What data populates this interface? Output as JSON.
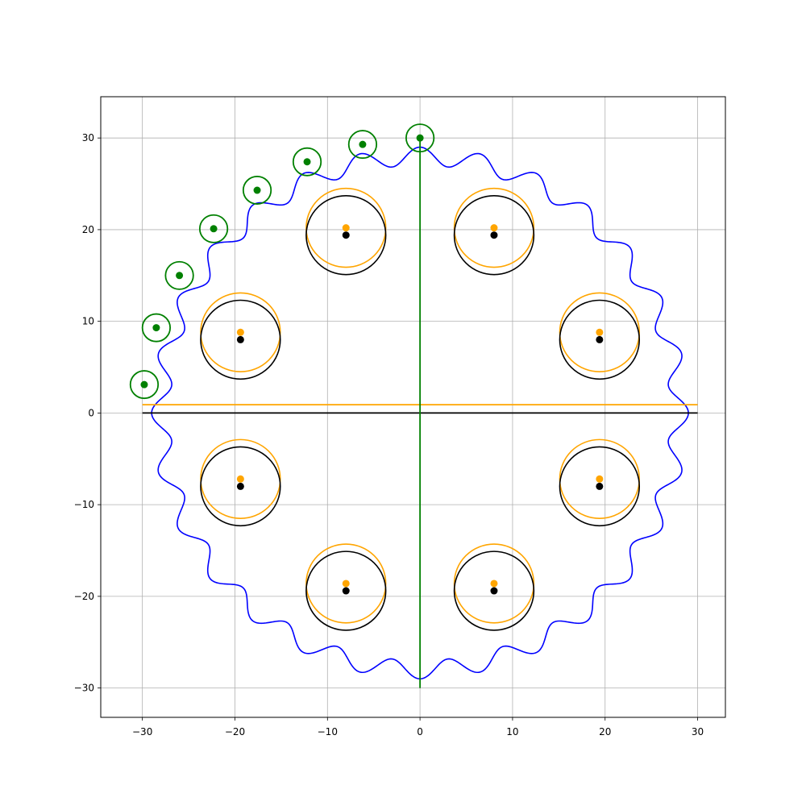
{
  "chart_data": {
    "type": "scatter",
    "title": "",
    "xlabel": "",
    "ylabel": "",
    "xlim": [
      -34.5,
      33.0
    ],
    "ylim": [
      -33.2,
      34.5
    ],
    "xticks": [
      -30,
      -20,
      -10,
      0,
      10,
      20,
      30
    ],
    "yticks": [
      -30,
      -20,
      -10,
      0,
      10,
      20,
      30
    ],
    "xtick_labels": [
      "−30",
      "−20",
      "−10",
      "0",
      "10",
      "20",
      "30"
    ],
    "ytick_labels": [
      "−30",
      "−20",
      "−10",
      "0",
      "10",
      "20",
      "30"
    ],
    "grid": true,
    "legend": "none",
    "colors": {
      "profile": "#0000ff",
      "pins": "#008000",
      "holes_reference": "#000000",
      "holes_offset": "#ffa500",
      "grid": "#b0b0b0"
    },
    "cycloid_profile": {
      "color": "#0000ff",
      "mean_radius": 28.0,
      "lobes": 28,
      "amplitude": 1.0
    },
    "reference_lines": [
      {
        "name": "",
        "color": "#000000",
        "x": [
          -30,
          30
        ],
        "y": [
          0,
          0
        ]
      },
      {
        "name": "",
        "color": "#ffa500",
        "x": [
          -30,
          30
        ],
        "y": [
          0.9,
          0.9
        ]
      },
      {
        "name": "",
        "color": "#008000",
        "x": [
          0,
          0
        ],
        "y": [
          -30,
          30
        ]
      }
    ],
    "pins": {
      "color": "#008000",
      "radius": 1.5,
      "centers": [
        [
          0.0,
          30.0
        ],
        [
          -6.2,
          29.3
        ],
        [
          -12.2,
          27.4
        ],
        [
          -17.6,
          24.3
        ],
        [
          -22.3,
          20.1
        ],
        [
          -26.0,
          15.0
        ],
        [
          -28.5,
          9.3
        ],
        [
          -29.8,
          3.1
        ]
      ]
    },
    "holes_reference": {
      "color": "#000000",
      "radius": 4.3,
      "centers": [
        [
          8.0,
          19.4
        ],
        [
          19.4,
          8.0
        ],
        [
          19.4,
          -8.0
        ],
        [
          8.0,
          -19.4
        ],
        [
          -8.0,
          -19.4
        ],
        [
          -19.4,
          -8.0
        ],
        [
          -19.4,
          8.0
        ],
        [
          -8.0,
          19.4
        ]
      ]
    },
    "holes_offset": {
      "color": "#ffa500",
      "radius": 4.3,
      "centers": [
        [
          8.0,
          20.2
        ],
        [
          19.4,
          8.8
        ],
        [
          19.4,
          -7.2
        ],
        [
          8.0,
          -18.6
        ],
        [
          -8.0,
          -18.6
        ],
        [
          -19.4,
          -7.2
        ],
        [
          -19.4,
          8.8
        ],
        [
          -8.0,
          20.2
        ]
      ]
    }
  }
}
